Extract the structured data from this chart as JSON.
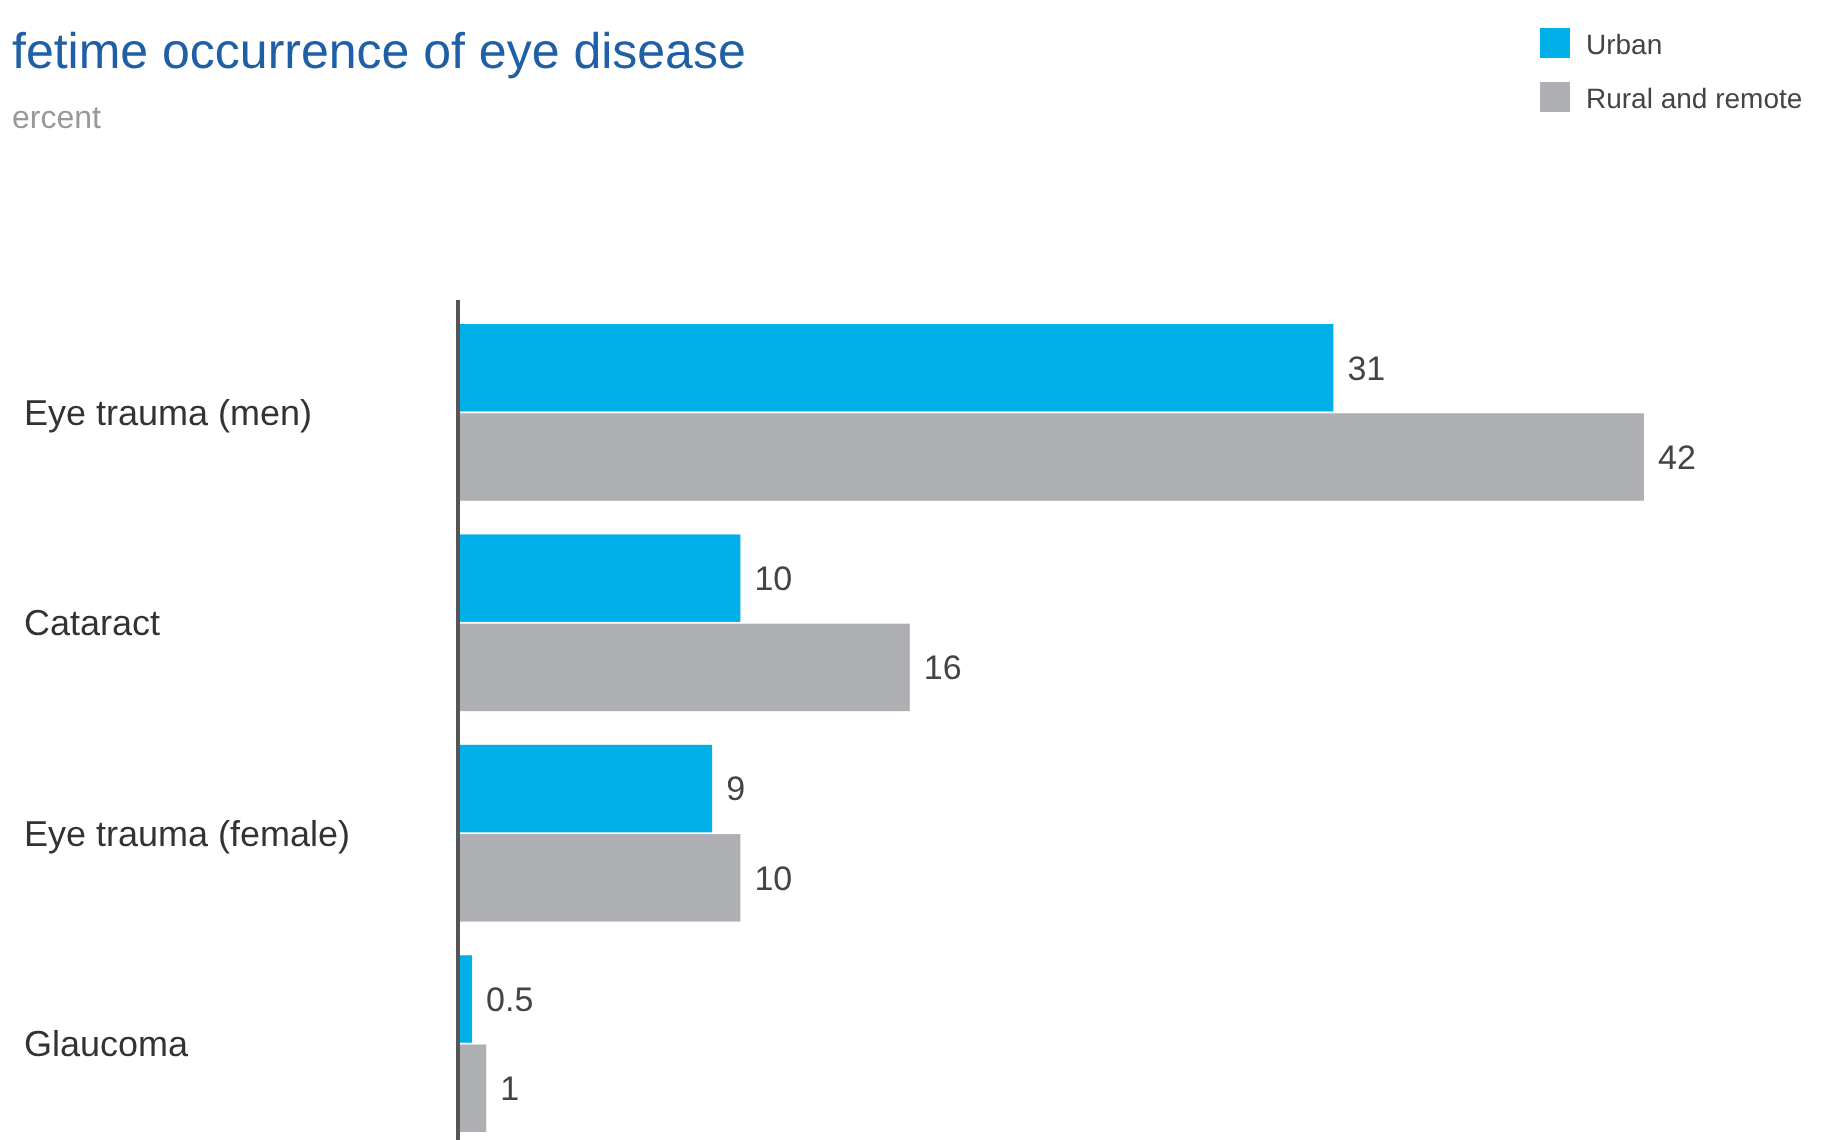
{
  "chart_data": {
    "type": "bar",
    "orientation": "horizontal",
    "title": "fetime occurrence of eye disease",
    "subtitle": "ercent",
    "categories": [
      "Eye trauma (men)",
      "Cataract",
      "Eye trauma (female)",
      "Glaucoma"
    ],
    "series": [
      {
        "name": "Urban",
        "color": "#00aee8",
        "values": [
          31,
          10,
          9,
          0.5
        ]
      },
      {
        "name": "Rural and remote",
        "color": "#aeafb3",
        "values": [
          42,
          16,
          10,
          1
        ]
      }
    ],
    "data_labels": true,
    "tick_labels": "y",
    "legend": "top right"
  }
}
